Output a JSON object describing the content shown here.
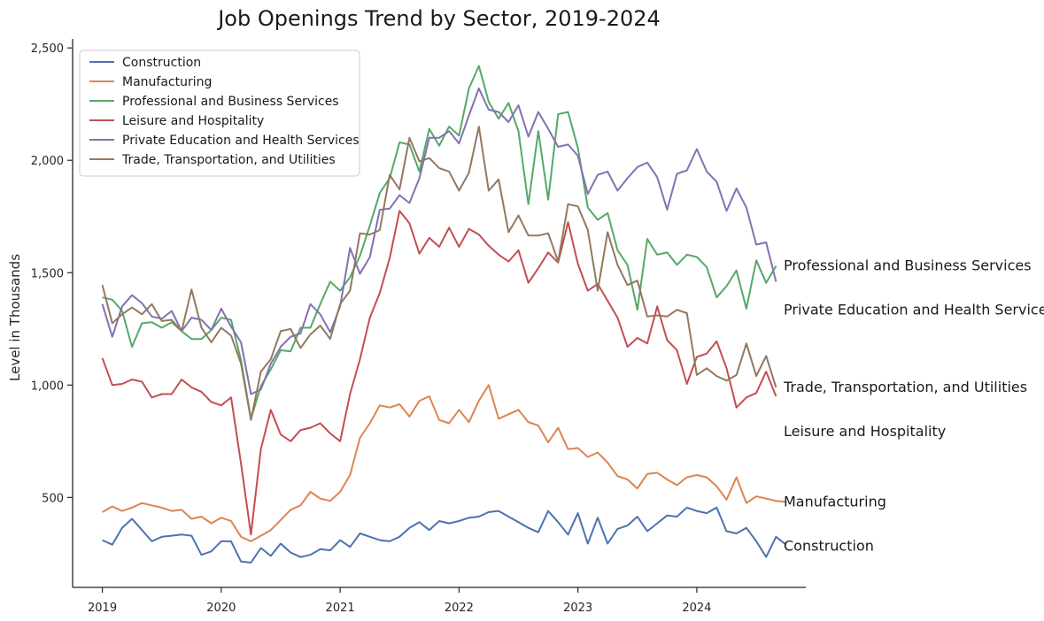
{
  "chart_data": {
    "type": "line",
    "title": "Job Openings Trend by Sector, 2019-2024",
    "xlabel": "",
    "ylabel": "Level in Thousands",
    "x_start": "2019-01",
    "x_tick_labels": [
      "2019",
      "2020",
      "2021",
      "2022",
      "2023",
      "2024"
    ],
    "xlim": [
      "2018-10",
      "2024-12"
    ],
    "ylim": [
      100,
      2540
    ],
    "y_ticks": [
      500,
      1000,
      1500,
      2000,
      2500
    ],
    "y_tick_labels": [
      "500",
      "1,000",
      "1,500",
      "2,000",
      "2,500"
    ],
    "grid": false,
    "legend": "upper-left",
    "series": [
      {
        "name": "Construction",
        "color": "#4c72b0",
        "end_label": "Construction",
        "values": [
          310,
          290,
          365,
          405,
          355,
          305,
          325,
          330,
          335,
          330,
          245,
          260,
          305,
          305,
          215,
          210,
          275,
          240,
          295,
          255,
          235,
          245,
          270,
          265,
          310,
          280,
          340,
          325,
          310,
          305,
          325,
          365,
          390,
          355,
          395,
          385,
          395,
          410,
          415,
          435,
          440,
          415,
          390,
          365,
          345,
          440,
          390,
          335,
          430,
          295,
          410,
          295,
          360,
          375,
          415,
          350,
          385,
          420,
          415,
          455,
          440,
          430,
          455,
          350,
          340,
          365,
          305,
          235,
          325,
          290
        ]
      },
      {
        "name": "Manufacturing",
        "color": "#dd8452",
        "end_label": "Manufacturing",
        "values": [
          435,
          460,
          440,
          455,
          475,
          465,
          455,
          440,
          445,
          405,
          415,
          385,
          410,
          395,
          325,
          305,
          330,
          355,
          400,
          445,
          465,
          525,
          495,
          485,
          525,
          600,
          765,
          830,
          910,
          900,
          915,
          860,
          930,
          950,
          845,
          830,
          890,
          835,
          930,
          1000,
          850,
          870,
          890,
          835,
          820,
          745,
          810,
          715,
          720,
          680,
          700,
          655,
          595,
          580,
          540,
          605,
          610,
          580,
          555,
          590,
          600,
          590,
          550,
          490,
          590,
          475,
          505,
          495,
          485,
          480
        ]
      },
      {
        "name": "Professional and Business Services",
        "color": "#55a868",
        "end_label": "Professional and Business Services",
        "values": [
          1390,
          1380,
          1330,
          1170,
          1275,
          1280,
          1255,
          1280,
          1240,
          1205,
          1205,
          1245,
          1300,
          1290,
          1110,
          850,
          995,
          1070,
          1155,
          1150,
          1255,
          1255,
          1360,
          1460,
          1420,
          1480,
          1575,
          1710,
          1855,
          1920,
          2080,
          2070,
          1950,
          2140,
          2065,
          2150,
          2110,
          2320,
          2420,
          2260,
          2185,
          2255,
          2130,
          1805,
          2130,
          1825,
          2205,
          2215,
          2055,
          1790,
          1735,
          1765,
          1600,
          1535,
          1335,
          1650,
          1580,
          1590,
          1535,
          1580,
          1570,
          1525,
          1390,
          1440,
          1510,
          1340,
          1555,
          1455,
          1530
        ]
      },
      {
        "name": "Leisure and Hospitality",
        "color": "#c44e52",
        "end_label": "Leisure and Hospitality",
        "values": [
          1120,
          1000,
          1005,
          1025,
          1015,
          945,
          960,
          960,
          1025,
          990,
          970,
          925,
          910,
          945,
          650,
          335,
          715,
          890,
          780,
          750,
          800,
          810,
          830,
          785,
          750,
          960,
          1115,
          1300,
          1410,
          1565,
          1775,
          1720,
          1585,
          1655,
          1615,
          1700,
          1615,
          1695,
          1670,
          1620,
          1580,
          1550,
          1600,
          1455,
          1520,
          1590,
          1545,
          1725,
          1540,
          1420,
          1450,
          1375,
          1300,
          1170,
          1210,
          1185,
          1350,
          1200,
          1155,
          1005,
          1125,
          1140,
          1195,
          1075,
          900,
          945,
          965,
          1060,
          950
        ]
      },
      {
        "name": "Private Education and Health Services",
        "color": "#8172b3",
        "end_label": "Private Education and Health Services",
        "values": [
          1360,
          1215,
          1350,
          1400,
          1365,
          1305,
          1295,
          1330,
          1240,
          1300,
          1290,
          1245,
          1340,
          1260,
          1190,
          960,
          980,
          1095,
          1170,
          1215,
          1230,
          1360,
          1315,
          1235,
          1350,
          1610,
          1495,
          1570,
          1780,
          1785,
          1845,
          1810,
          1920,
          2100,
          2100,
          2130,
          2075,
          2200,
          2320,
          2225,
          2215,
          2170,
          2245,
          2105,
          2215,
          2140,
          2060,
          2070,
          2020,
          1850,
          1935,
          1950,
          1865,
          1920,
          1970,
          1990,
          1925,
          1780,
          1940,
          1955,
          2050,
          1950,
          1905,
          1775,
          1875,
          1790,
          1625,
          1635,
          1460
        ]
      },
      {
        "name": "Trade, Transportation, and Utilities",
        "color": "#937860",
        "end_label": "Trade, Transportation, and Utilities",
        "values": [
          1445,
          1275,
          1315,
          1345,
          1315,
          1360,
          1285,
          1290,
          1240,
          1425,
          1255,
          1190,
          1255,
          1220,
          1095,
          845,
          1060,
          1115,
          1240,
          1250,
          1165,
          1225,
          1265,
          1205,
          1360,
          1420,
          1675,
          1670,
          1690,
          1935,
          1870,
          2100,
          1995,
          2010,
          1965,
          1950,
          1865,
          1945,
          2150,
          1865,
          1915,
          1680,
          1755,
          1665,
          1665,
          1675,
          1550,
          1805,
          1795,
          1690,
          1420,
          1680,
          1535,
          1445,
          1465,
          1305,
          1310,
          1305,
          1335,
          1320,
          1045,
          1075,
          1040,
          1020,
          1045,
          1185,
          1040,
          1130,
          990
        ]
      }
    ]
  }
}
